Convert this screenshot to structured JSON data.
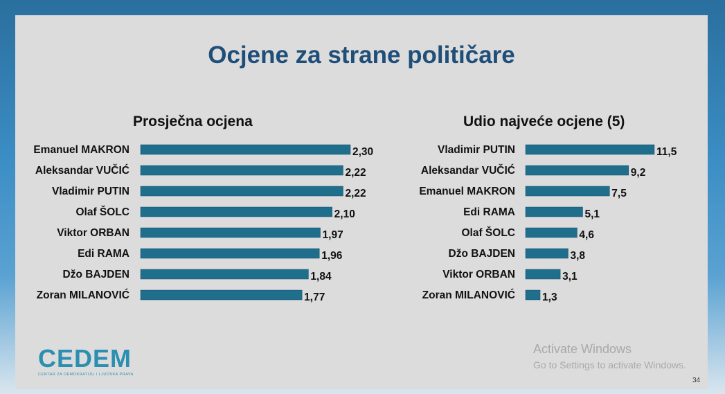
{
  "slide": {
    "title": "Ocjene za strane političare",
    "page_number": "34"
  },
  "logo": {
    "text": "CEDEM",
    "subtitle": "CENTAR ZA DEMOKRATIJU I LJUDSKA PRAVA"
  },
  "watermark": {
    "title": "Activate Windows",
    "subtitle": "Go to Settings to activate Windows."
  },
  "colors": {
    "bar": "#1f6e8c",
    "title": "#1f4e79",
    "slide_background": "#dcdcdc"
  },
  "chart_data": [
    {
      "type": "bar",
      "orientation": "horizontal",
      "title": "Prosječna ocjena",
      "categories": [
        "Emanuel MAKRON",
        "Aleksandar VUČIĆ",
        "Vladimir PUTIN",
        "Olaf ŠOLC",
        "Viktor ORBAN",
        "Edi RAMA",
        "Džo BAJDEN",
        "Zoran MILANOVIĆ"
      ],
      "values": [
        2.3,
        2.22,
        2.22,
        2.1,
        1.97,
        1.96,
        1.84,
        1.77
      ],
      "value_labels": [
        "2,30",
        "2,22",
        "2,22",
        "2,10",
        "1,97",
        "1,96",
        "1,84",
        "1,77"
      ],
      "xlim": [
        0,
        2.3
      ],
      "grid": false,
      "legend": "none"
    },
    {
      "type": "bar",
      "orientation": "horizontal",
      "title": "Udio najveće ocjene (5)",
      "categories": [
        "Vladimir PUTIN",
        "Aleksandar VUČIĆ",
        "Emanuel MAKRON",
        "Edi RAMA",
        "Olaf ŠOLC",
        "Džo BAJDEN",
        "Viktor ORBAN",
        "Zoran MILANOVIĆ"
      ],
      "values": [
        11.5,
        9.2,
        7.5,
        5.1,
        4.6,
        3.8,
        3.1,
        1.3
      ],
      "value_labels": [
        "11,5",
        "9,2",
        "7,5",
        "5,1",
        "4,6",
        "3,8",
        "3,1",
        "1,3"
      ],
      "xlim": [
        0,
        11.5
      ],
      "grid": false,
      "legend": "none"
    }
  ]
}
